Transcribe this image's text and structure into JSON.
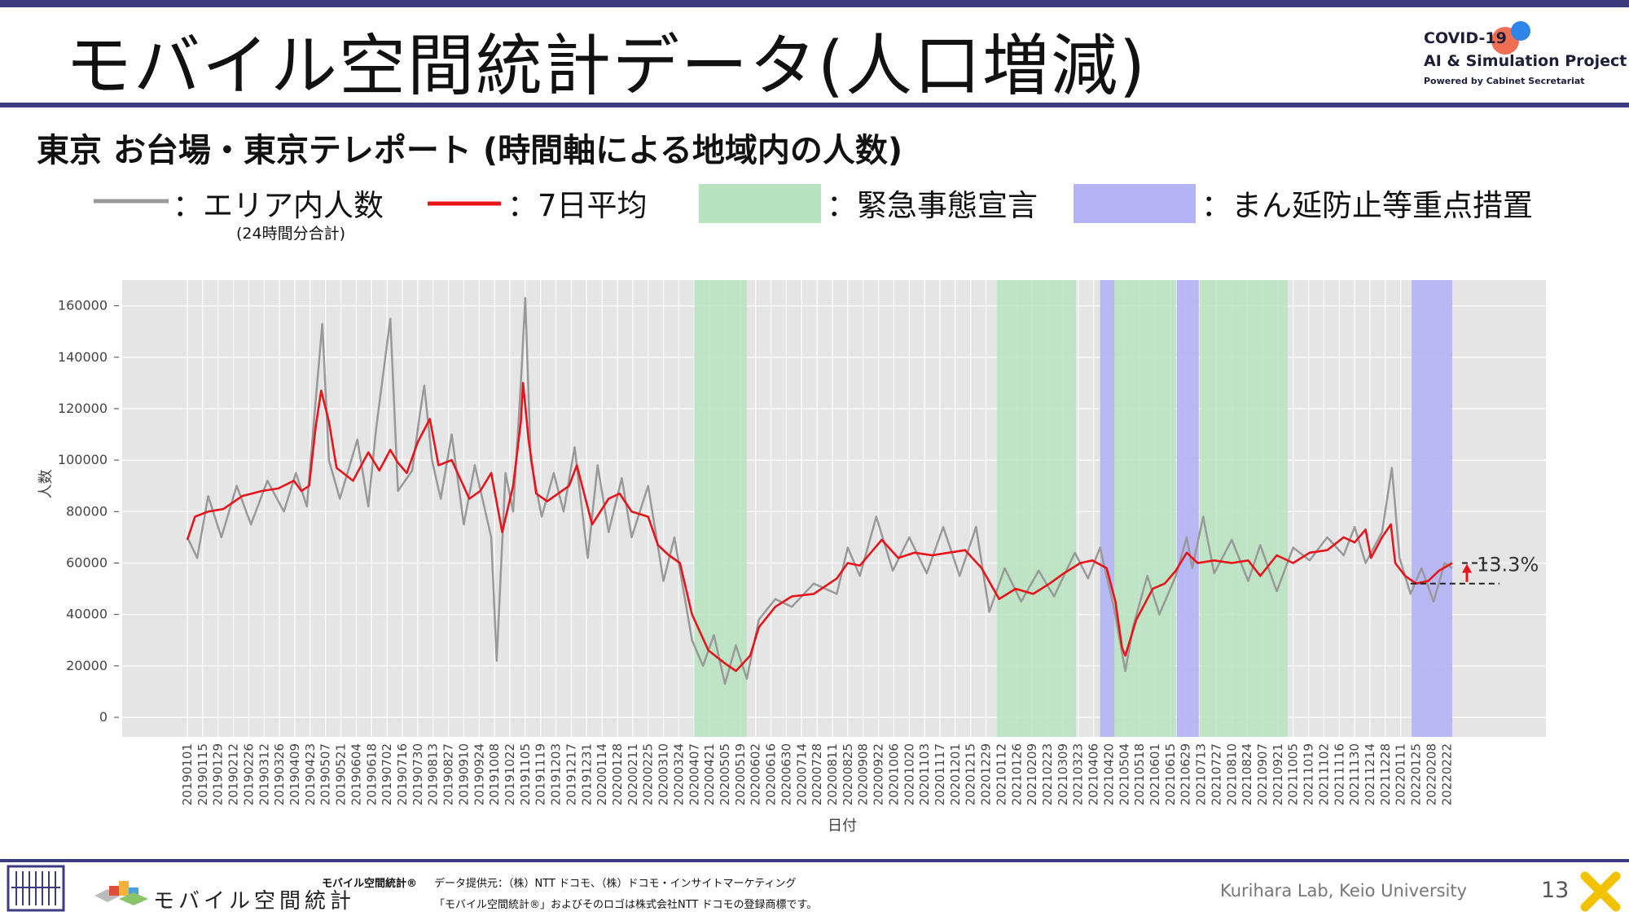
{
  "slide": {
    "title": "モバイル空間統計データ(人口増減)",
    "subtitle": "東京 お台場・東京テレポート (時間軸による地域内の人数)",
    "page_number": "13"
  },
  "logo": {
    "line1": "COVID-19",
    "line2": "AI & Simulation Project",
    "line3": "Powered by Cabinet Secretariat"
  },
  "legend": {
    "area_label": "：エリア内人数",
    "area_sub": "(24時間分合計)",
    "avg_label": "：7日平均",
    "emergency_label": "：緊急事態宣言",
    "semi_label": "：まん延防止等重点措置"
  },
  "colors": {
    "raw_line": "#999999",
    "avg_line": "#e8141a",
    "emergency": "#b7e3c0",
    "semi": "#b3b3f5",
    "header_bar": "#3d3b7f"
  },
  "footer": {
    "brand": "モバイル空間統計",
    "source_title": "モバイル空間統計®",
    "source_line1": "データ提供元：（株）NTT ドコモ、（株）ドコモ・インサイトマーケティング",
    "source_line2": "「モバイル空間統計®」およびそのロゴは株式会社NTT ドコモの登録商標です。",
    "credit": "Kurihara Lab, Keio University"
  },
  "chart_data": {
    "type": "line",
    "xlabel": "日付",
    "ylabel": "人数",
    "ylim": [
      0,
      170000
    ],
    "yticks": [
      0,
      20000,
      40000,
      60000,
      80000,
      100000,
      120000,
      140000,
      160000
    ],
    "x_range": [
      "20190101",
      "20220227"
    ],
    "grid": true,
    "annotation": "13.3%",
    "xtick_labels": [
      "20190101",
      "20190115",
      "20190129",
      "20190212",
      "20190226",
      "20190312",
      "20190326",
      "20190409",
      "20190423",
      "20190507",
      "20190521",
      "20190604",
      "20190618",
      "20190702",
      "20190716",
      "20190730",
      "20190813",
      "20190827",
      "20190910",
      "20190924",
      "20191008",
      "20191022",
      "20191105",
      "20191119",
      "20191203",
      "20191217",
      "20191231",
      "20200114",
      "20200128",
      "20200211",
      "20200225",
      "20200310",
      "20200324",
      "20200407",
      "20200421",
      "20200505",
      "20200519",
      "20200602",
      "20200616",
      "20200630",
      "20200714",
      "20200728",
      "20200811",
      "20200825",
      "20200908",
      "20200922",
      "20201006",
      "20201020",
      "20201103",
      "20201117",
      "20201201",
      "20201215",
      "20201229",
      "20210112",
      "20210126",
      "20210209",
      "20210223",
      "20210309",
      "20210323",
      "20210406",
      "20210420",
      "20210504",
      "20210518",
      "20210601",
      "20210615",
      "20210629",
      "20210713",
      "20210727",
      "20210810",
      "20210824",
      "20210907",
      "20210921",
      "20211005",
      "20211019",
      "20211102",
      "20211116",
      "20211130",
      "20211214",
      "20211228",
      "20220111",
      "20220125",
      "20220208",
      "20220222"
    ],
    "emergency_periods": [
      [
        "20200407",
        "20200525"
      ],
      [
        "20210108",
        "20210321"
      ],
      [
        "20210425",
        "20210620"
      ],
      [
        "20210712",
        "20210930"
      ]
    ],
    "semi_emergency_periods": [
      [
        "20210412",
        "20210425"
      ],
      [
        "20210621",
        "20210711"
      ],
      [
        "20220121",
        "20220227"
      ]
    ],
    "series": [
      {
        "name": "7日平均",
        "points": [
          [
            "20190101",
            69000
          ],
          [
            "20190108",
            78000
          ],
          [
            "20190120",
            80000
          ],
          [
            "20190203",
            81000
          ],
          [
            "20190220",
            86000
          ],
          [
            "20190310",
            88000
          ],
          [
            "20190325",
            89000
          ],
          [
            "20190408",
            92000
          ],
          [
            "20190415",
            88000
          ],
          [
            "20190422",
            90000
          ],
          [
            "20190428",
            113000
          ],
          [
            "20190503",
            127000
          ],
          [
            "20190510",
            115000
          ],
          [
            "20190517",
            97000
          ],
          [
            "20190601",
            92000
          ],
          [
            "20190615",
            103000
          ],
          [
            "20190625",
            96000
          ],
          [
            "20190705",
            104000
          ],
          [
            "20190712",
            99000
          ],
          [
            "20190720",
            95000
          ],
          [
            "20190730",
            107000
          ],
          [
            "20190810",
            116000
          ],
          [
            "20190818",
            98000
          ],
          [
            "20190830",
            100000
          ],
          [
            "20190915",
            85000
          ],
          [
            "20190925",
            88000
          ],
          [
            "20191005",
            95000
          ],
          [
            "20191015",
            72000
          ],
          [
            "20191025",
            90000
          ],
          [
            "20191101",
            115000
          ],
          [
            "20191103",
            130000
          ],
          [
            "20191108",
            108000
          ],
          [
            "20191115",
            87000
          ],
          [
            "20191125",
            84000
          ],
          [
            "20191215",
            90000
          ],
          [
            "20191222",
            98000
          ],
          [
            "20200105",
            75000
          ],
          [
            "20200120",
            85000
          ],
          [
            "20200130",
            87000
          ],
          [
            "20200210",
            80000
          ],
          [
            "20200225",
            78000
          ],
          [
            "20200305",
            67000
          ],
          [
            "20200315",
            63000
          ],
          [
            "20200325",
            60000
          ],
          [
            "20200405",
            40000
          ],
          [
            "20200420",
            26000
          ],
          [
            "20200505",
            21000
          ],
          [
            "20200515",
            18000
          ],
          [
            "20200528",
            24000
          ],
          [
            "20200605",
            35000
          ],
          [
            "20200620",
            43000
          ],
          [
            "20200705",
            47000
          ],
          [
            "20200725",
            48000
          ],
          [
            "20200815",
            54000
          ],
          [
            "20200825",
            60000
          ],
          [
            "20200905",
            59000
          ],
          [
            "20200915",
            64000
          ],
          [
            "20200925",
            69000
          ],
          [
            "20201010",
            62000
          ],
          [
            "20201025",
            64000
          ],
          [
            "20201110",
            63000
          ],
          [
            "20201125",
            64000
          ],
          [
            "20201210",
            65000
          ],
          [
            "20201225",
            58000
          ],
          [
            "20210110",
            46000
          ],
          [
            "20210125",
            50000
          ],
          [
            "20210210",
            48000
          ],
          [
            "20210225",
            52000
          ],
          [
            "20210310",
            56000
          ],
          [
            "20210325",
            60000
          ],
          [
            "20210405",
            61000
          ],
          [
            "20210418",
            58000
          ],
          [
            "20210426",
            45000
          ],
          [
            "20210502",
            27000
          ],
          [
            "20210505",
            24000
          ],
          [
            "20210515",
            38000
          ],
          [
            "20210530",
            50000
          ],
          [
            "20210610",
            52000
          ],
          [
            "20210620",
            57000
          ],
          [
            "20210630",
            64000
          ],
          [
            "20210710",
            60000
          ],
          [
            "20210725",
            61000
          ],
          [
            "20210810",
            60000
          ],
          [
            "20210825",
            61000
          ],
          [
            "20210905",
            55000
          ],
          [
            "20210920",
            63000
          ],
          [
            "20211005",
            60000
          ],
          [
            "20211020",
            64000
          ],
          [
            "20211105",
            65000
          ],
          [
            "20211120",
            70000
          ],
          [
            "20211130",
            68000
          ],
          [
            "20211210",
            73000
          ],
          [
            "20211215",
            62000
          ],
          [
            "20211225",
            70000
          ],
          [
            "20220102",
            75000
          ],
          [
            "20220106",
            60000
          ],
          [
            "20220115",
            55000
          ],
          [
            "20220125",
            52000
          ],
          [
            "20220205",
            53000
          ],
          [
            "20220215",
            57000
          ],
          [
            "20220227",
            60000
          ]
        ]
      },
      {
        "name": "エリア内人数",
        "points": [
          [
            "20190101",
            70000
          ],
          [
            "20190110",
            62000
          ],
          [
            "20190120",
            86000
          ],
          [
            "20190201",
            70000
          ],
          [
            "20190215",
            90000
          ],
          [
            "20190228",
            75000
          ],
          [
            "20190315",
            92000
          ],
          [
            "20190330",
            80000
          ],
          [
            "20190410",
            95000
          ],
          [
            "20190420",
            82000
          ],
          [
            "20190427",
            118000
          ],
          [
            "20190504",
            153000
          ],
          [
            "20190510",
            100000
          ],
          [
            "20190520",
            85000
          ],
          [
            "20190605",
            108000
          ],
          [
            "20190615",
            82000
          ],
          [
            "20190622",
            112000
          ],
          [
            "20190705",
            155000
          ],
          [
            "20190712",
            88000
          ],
          [
            "20190725",
            96000
          ],
          [
            "20190801",
            118000
          ],
          [
            "20190805",
            129000
          ],
          [
            "20190812",
            100000
          ],
          [
            "20190820",
            85000
          ],
          [
            "20190830",
            110000
          ],
          [
            "20190910",
            75000
          ],
          [
            "20190920",
            98000
          ],
          [
            "20191005",
            70000
          ],
          [
            "20191010",
            22000
          ],
          [
            "20191018",
            95000
          ],
          [
            "20191025",
            80000
          ],
          [
            "20191101",
            130000
          ],
          [
            "20191105",
            163000
          ],
          [
            "20191110",
            100000
          ],
          [
            "20191120",
            78000
          ],
          [
            "20191201",
            95000
          ],
          [
            "20191210",
            80000
          ],
          [
            "20191220",
            105000
          ],
          [
            "20200101",
            62000
          ],
          [
            "20200110",
            98000
          ],
          [
            "20200120",
            72000
          ],
          [
            "20200201",
            93000
          ],
          [
            "20200210",
            70000
          ],
          [
            "20200225",
            90000
          ],
          [
            "20200310",
            53000
          ],
          [
            "20200320",
            70000
          ],
          [
            "20200405",
            30000
          ],
          [
            "20200415",
            20000
          ],
          [
            "20200425",
            32000
          ],
          [
            "20200505",
            13000
          ],
          [
            "20200515",
            28000
          ],
          [
            "20200525",
            15000
          ],
          [
            "20200605",
            38000
          ],
          [
            "20200620",
            46000
          ],
          [
            "20200705",
            43000
          ],
          [
            "20200725",
            52000
          ],
          [
            "20200815",
            48000
          ],
          [
            "20200825",
            66000
          ],
          [
            "20200905",
            55000
          ],
          [
            "20200920",
            78000
          ],
          [
            "20201005",
            57000
          ],
          [
            "20201020",
            70000
          ],
          [
            "20201105",
            56000
          ],
          [
            "20201120",
            74000
          ],
          [
            "20201205",
            55000
          ],
          [
            "20201220",
            74000
          ],
          [
            "20210101",
            41000
          ],
          [
            "20210115",
            58000
          ],
          [
            "20210130",
            45000
          ],
          [
            "20210215",
            57000
          ],
          [
            "20210301",
            47000
          ],
          [
            "20210320",
            64000
          ],
          [
            "20210401",
            54000
          ],
          [
            "20210412",
            66000
          ],
          [
            "20210425",
            42000
          ],
          [
            "20210505",
            18000
          ],
          [
            "20210512",
            35000
          ],
          [
            "20210525",
            55000
          ],
          [
            "20210605",
            40000
          ],
          [
            "20210620",
            55000
          ],
          [
            "20210630",
            70000
          ],
          [
            "20210705",
            58000
          ],
          [
            "20210715",
            78000
          ],
          [
            "20210725",
            56000
          ],
          [
            "20210810",
            69000
          ],
          [
            "20210825",
            53000
          ],
          [
            "20210905",
            67000
          ],
          [
            "20210920",
            49000
          ],
          [
            "20211005",
            66000
          ],
          [
            "20211020",
            61000
          ],
          [
            "20211105",
            70000
          ],
          [
            "20211120",
            63000
          ],
          [
            "20211130",
            74000
          ],
          [
            "20211210",
            60000
          ],
          [
            "20211225",
            72000
          ],
          [
            "20220103",
            97000
          ],
          [
            "20220110",
            62000
          ],
          [
            "20220120",
            48000
          ],
          [
            "20220130",
            58000
          ],
          [
            "20220210",
            45000
          ],
          [
            "20220220",
            60000
          ],
          [
            "20220227",
            58000
          ]
        ]
      }
    ]
  }
}
